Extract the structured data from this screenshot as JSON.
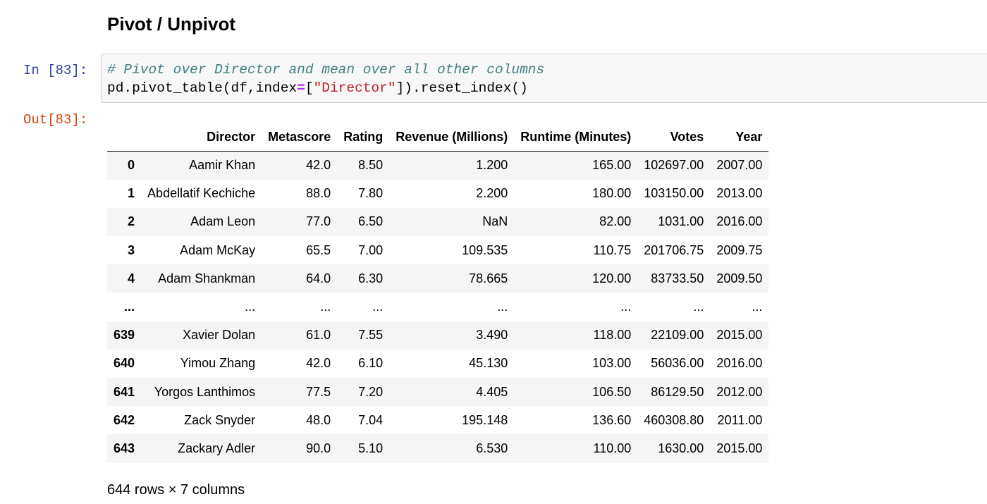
{
  "notebook": {
    "heading": "Pivot / Unpivot",
    "input_prompt": "In [83]:",
    "output_prompt": "Out[83]:",
    "code": {
      "line1_comment": "# Pivot over Director and mean over all other columns",
      "line2_a": "pd.pivot_table(df,index",
      "line2_op": "=",
      "line2_b": "[",
      "line2_string": "\"Director\"",
      "line2_c": "]).reset_index()"
    },
    "dataframe": {
      "columns": [
        "",
        "Director",
        "Metascore",
        "Rating",
        "Revenue (Millions)",
        "Runtime (Minutes)",
        "Votes",
        "Year"
      ],
      "rows": [
        [
          "0",
          "Aamir Khan",
          "42.0",
          "8.50",
          "1.200",
          "165.00",
          "102697.00",
          "2007.00"
        ],
        [
          "1",
          "Abdellatif Kechiche",
          "88.0",
          "7.80",
          "2.200",
          "180.00",
          "103150.00",
          "2013.00"
        ],
        [
          "2",
          "Adam Leon",
          "77.0",
          "6.50",
          "NaN",
          "82.00",
          "1031.00",
          "2016.00"
        ],
        [
          "3",
          "Adam McKay",
          "65.5",
          "7.00",
          "109.535",
          "110.75",
          "201706.75",
          "2009.75"
        ],
        [
          "4",
          "Adam Shankman",
          "64.0",
          "6.30",
          "78.665",
          "120.00",
          "83733.50",
          "2009.50"
        ],
        [
          "...",
          "...",
          "...",
          "...",
          "...",
          "...",
          "...",
          "..."
        ],
        [
          "639",
          "Xavier Dolan",
          "61.0",
          "7.55",
          "3.490",
          "118.00",
          "22109.00",
          "2015.00"
        ],
        [
          "640",
          "Yimou Zhang",
          "42.0",
          "6.10",
          "45.130",
          "103.00",
          "56036.00",
          "2016.00"
        ],
        [
          "641",
          "Yorgos Lanthimos",
          "77.5",
          "7.20",
          "4.405",
          "106.50",
          "86129.50",
          "2012.00"
        ],
        [
          "642",
          "Zack Snyder",
          "48.0",
          "7.04",
          "195.148",
          "136.60",
          "460308.80",
          "2011.00"
        ],
        [
          "643",
          "Zackary Adler",
          "90.0",
          "5.10",
          "6.530",
          "110.00",
          "1630.00",
          "2015.00"
        ]
      ],
      "shape_note": "644 rows × 7 columns"
    }
  }
}
